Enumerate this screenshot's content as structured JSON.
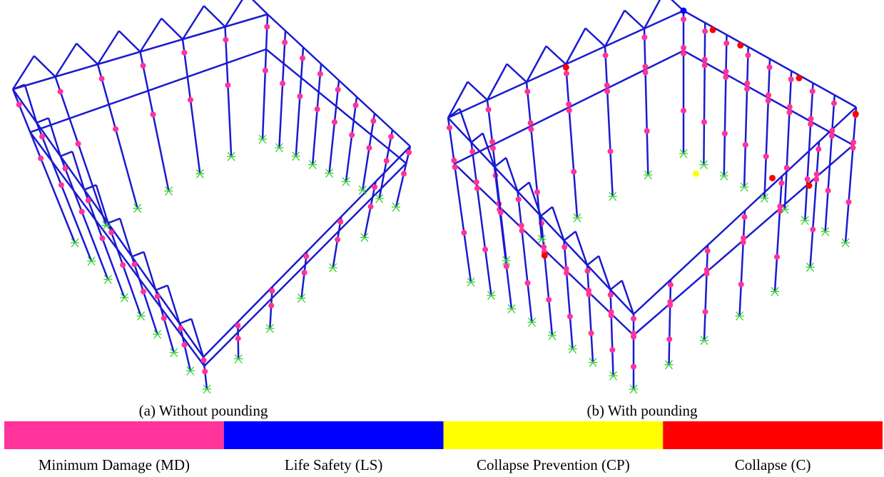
{
  "figure": {
    "panels": [
      {
        "caption": "(a) Without pounding"
      },
      {
        "caption": "(b) With pounding"
      }
    ],
    "legend": {
      "items": [
        {
          "label": "Minimum Damage (MD)",
          "color": "#ff3399"
        },
        {
          "label": "Life Safety (LS)",
          "color": "#0000ff"
        },
        {
          "label": "Collapse Prevention (CP)",
          "color": "#ffff00"
        },
        {
          "label": "Collapse (C)",
          "color": "#ff0000"
        }
      ]
    }
  }
}
